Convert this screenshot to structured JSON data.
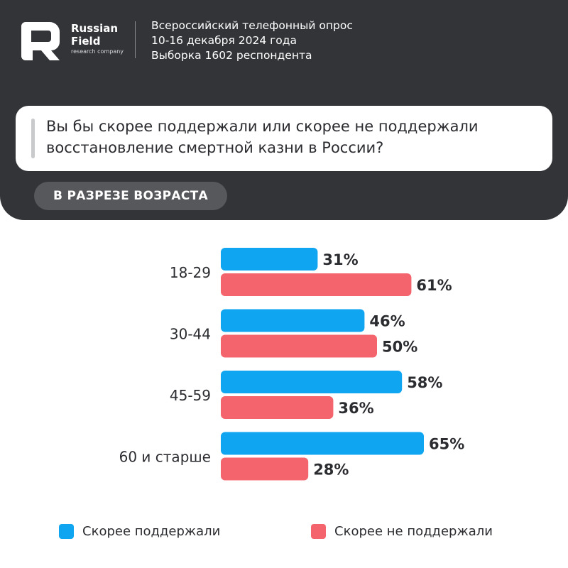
{
  "brand": {
    "name_line1": "Russian",
    "name_line2": "Field",
    "tagline": "research company"
  },
  "survey": {
    "line1": "Всероссийский телефонный опрос",
    "line2": "10-16 декабря 2024 года",
    "line3": "Выборка 1602 респондента"
  },
  "question": {
    "line1": "Вы бы скорее поддержали или скорее не поддержали",
    "line2": "восстановление смертной казни в России?"
  },
  "breakdown_label": "В РАЗРЕЗЕ ВОЗРАСТА",
  "colors": {
    "header_bg": "#323438",
    "support": "#0fa5f0",
    "not_support": "#f4646c"
  },
  "chart_data": {
    "type": "bar",
    "orientation": "horizontal",
    "categories": [
      "18-29",
      "30-44",
      "45-59",
      "60 и старше"
    ],
    "series": [
      {
        "name": "Скорее поддержали",
        "values": [
          31,
          46,
          58,
          65
        ],
        "labels": [
          "31%",
          "46%",
          "58%",
          "65%"
        ],
        "color": "#0fa5f0"
      },
      {
        "name": "Скорее не поддержали",
        "values": [
          61,
          50,
          36,
          28
        ],
        "labels": [
          "61%",
          "50%",
          "36%",
          "28%"
        ],
        "color": "#f4646c"
      }
    ],
    "unit": "%",
    "xlim": [
      0,
      100
    ],
    "grid": false,
    "legend_position": "bottom"
  }
}
